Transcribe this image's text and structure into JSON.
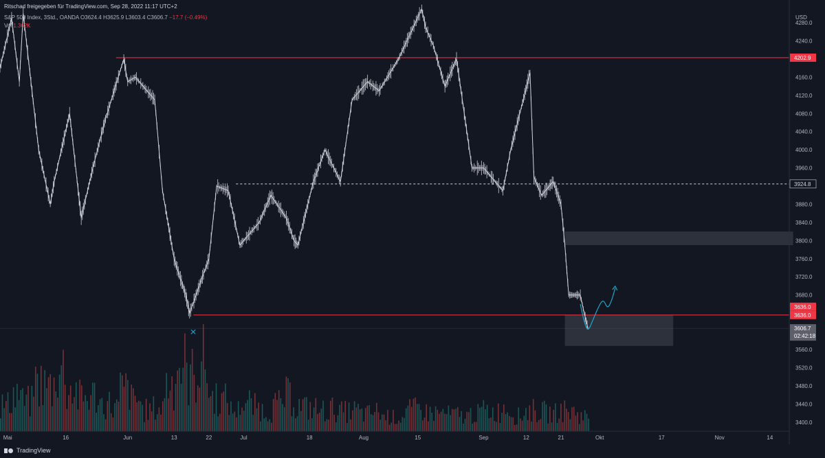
{
  "header": {
    "share_text": "Ritschad freigegeben für TradingView.com, Sep 28, 2022 11:17 UTC+2",
    "symbol": "S&P 500 Index, 3Std., OANDA",
    "o_label": "O",
    "o_value": "3624.4",
    "h_label": "H",
    "h_value": "3625.9",
    "l_label": "L",
    "l_value": "3603.4",
    "c_label": "C",
    "c_value": "3606.7",
    "change": "−17.7 (−0.49%)",
    "vol_label": "Vol",
    "vol_value": "1.362K"
  },
  "footer": {
    "brand": "TradingView"
  },
  "colors": {
    "background": "#131722",
    "candle": "#d1d4dc",
    "resistance": "#f23645",
    "annotation": "#22a3c9",
    "volume_up": "#26a69a",
    "volume_down": "#ef5350"
  },
  "chart_data": {
    "type": "line",
    "currency": "USD",
    "ylim": [
      3380,
      4330
    ],
    "y_ticks": [
      3400,
      3440,
      3480,
      3520,
      3560,
      3600,
      3640,
      3680,
      3720,
      3760,
      3800,
      3840,
      3880,
      3920,
      3960,
      4000,
      4040,
      4080,
      4120,
      4160,
      4200,
      4240,
      4280
    ],
    "y_tick_labels": [
      "3400.0",
      "3440.0",
      "3480.0",
      "3520.0",
      "3560.0",
      "3600.0",
      "3640.0",
      "3680.0",
      "3720.0",
      "3760.0",
      "3800.0",
      "3840.0",
      "3880.0",
      "3920.0",
      "3960.0",
      "4000.0",
      "4040.0",
      "4080.0",
      "4120.0",
      "4160.0",
      "4200.0",
      "4240.0",
      "4280.0"
    ],
    "x_domain": [
      "2022-04-29",
      "2022-11-19"
    ],
    "x_ticks": [
      {
        "date": "2022-05-01",
        "label": "Mai"
      },
      {
        "date": "2022-05-16",
        "label": "16"
      },
      {
        "date": "2022-06-01",
        "label": "Jun"
      },
      {
        "date": "2022-06-13",
        "label": "13"
      },
      {
        "date": "2022-06-22",
        "label": "22"
      },
      {
        "date": "2022-07-01",
        "label": "Jul"
      },
      {
        "date": "2022-07-18",
        "label": "18"
      },
      {
        "date": "2022-08-01",
        "label": "Aug"
      },
      {
        "date": "2022-08-15",
        "label": "15"
      },
      {
        "date": "2022-09-01",
        "label": "Sep"
      },
      {
        "date": "2022-09-12",
        "label": "12"
      },
      {
        "date": "2022-09-21",
        "label": "21"
      },
      {
        "date": "2022-10-01",
        "label": "Okt"
      },
      {
        "date": "2022-10-17",
        "label": "17"
      },
      {
        "date": "2022-11-01",
        "label": "Nov"
      },
      {
        "date": "2022-11-14",
        "label": "14"
      }
    ],
    "series": [
      {
        "x": [
          "2022-04-29",
          "2022-05-02",
          "2022-05-04",
          "2022-05-05",
          "2022-05-09",
          "2022-05-12",
          "2022-05-13",
          "2022-05-17",
          "2022-05-20",
          "2022-05-23",
          "2022-05-26",
          "2022-05-31",
          "2022-06-01",
          "2022-06-03",
          "2022-06-08",
          "2022-06-10",
          "2022-06-13",
          "2022-06-16",
          "2022-06-17",
          "2022-06-22",
          "2022-06-24",
          "2022-06-27",
          "2022-06-30",
          "2022-07-05",
          "2022-07-08",
          "2022-07-12",
          "2022-07-14",
          "2022-07-15",
          "2022-07-19",
          "2022-07-22",
          "2022-07-26",
          "2022-07-29",
          "2022-08-02",
          "2022-08-05",
          "2022-08-10",
          "2022-08-16",
          "2022-08-17",
          "2022-08-19",
          "2022-08-22",
          "2022-08-25",
          "2022-08-29",
          "2022-09-01",
          "2022-09-06",
          "2022-09-08",
          "2022-09-13",
          "2022-09-14",
          "2022-09-16",
          "2022-09-19",
          "2022-09-21",
          "2022-09-22",
          "2022-09-23",
          "2022-09-26",
          "2022-09-27",
          "2022-09-28"
        ],
        "values": [
          4180,
          4290,
          4150,
          4300,
          4000,
          3880,
          3930,
          4080,
          3850,
          3960,
          4060,
          4200,
          4150,
          4160,
          4110,
          3910,
          3760,
          3680,
          3640,
          3760,
          3920,
          3910,
          3790,
          3840,
          3900,
          3850,
          3800,
          3790,
          3930,
          4000,
          3930,
          4110,
          4150,
          4130,
          4200,
          4310,
          4270,
          4230,
          4140,
          4200,
          3960,
          3960,
          3910,
          4000,
          4170,
          3940,
          3900,
          3930,
          3880,
          3790,
          3680,
          3680,
          3640,
          3606
        ]
      }
    ],
    "volume": [
      0.38,
      0.55,
      0.42,
      0.7,
      0.65,
      0.9,
      0.6,
      0.48,
      0.52,
      0.4,
      0.35,
      0.6,
      0.45,
      0.3,
      0.33,
      0.7,
      0.95,
      0.8,
      1.0,
      0.5,
      0.45,
      0.3,
      0.42,
      0.35,
      0.3,
      0.38,
      0.5,
      0.36,
      0.33,
      0.3,
      0.32,
      0.28,
      0.3,
      0.25,
      0.28,
      0.22,
      0.2,
      0.3,
      0.32,
      0.27,
      0.26,
      0.24,
      0.22,
      0.25,
      0.3,
      0.28,
      0.35,
      0.22,
      0.3,
      0.28,
      0.26,
      0.3,
      0.28,
      0.22
    ],
    "levels": [
      {
        "value": 4202.9,
        "label": "4202.9",
        "style": "solid",
        "color": "#f23645",
        "from": "2022-05-29"
      },
      {
        "value": 3924.8,
        "label": "3924.8",
        "style": "dashed",
        "color": "#d1d4dc",
        "from": "2022-06-29"
      },
      {
        "value": 3636.0,
        "label": "3636.0",
        "style": "solid",
        "color": "#f23645",
        "from": "2022-06-18"
      }
    ],
    "price_badges": [
      {
        "value": 3636.0,
        "label": "3636.0",
        "color": "#f23645"
      },
      {
        "value": 3606.7,
        "label": "3606.7",
        "color": "#5d606b",
        "sub": "02:42:18"
      }
    ],
    "zones": [
      {
        "from": "2022-09-22",
        "to": "2022-11-20",
        "y_from": 3790,
        "y_to": 3820
      },
      {
        "from": "2022-09-22",
        "to": "2022-10-20",
        "y_from": 3568,
        "y_to": 3636
      }
    ],
    "marker": {
      "date": "2022-06-18",
      "value": 3615,
      "symbol": "×"
    },
    "projection": {
      "x": [
        "2022-09-26",
        "2022-09-27",
        "2022-09-28",
        "2022-09-29",
        "2022-10-01",
        "2022-10-02",
        "2022-10-03",
        "2022-10-04",
        "2022-10-05"
      ],
      "values": [
        3660,
        3620,
        3600,
        3620,
        3660,
        3670,
        3650,
        3665,
        3695
      ]
    }
  }
}
